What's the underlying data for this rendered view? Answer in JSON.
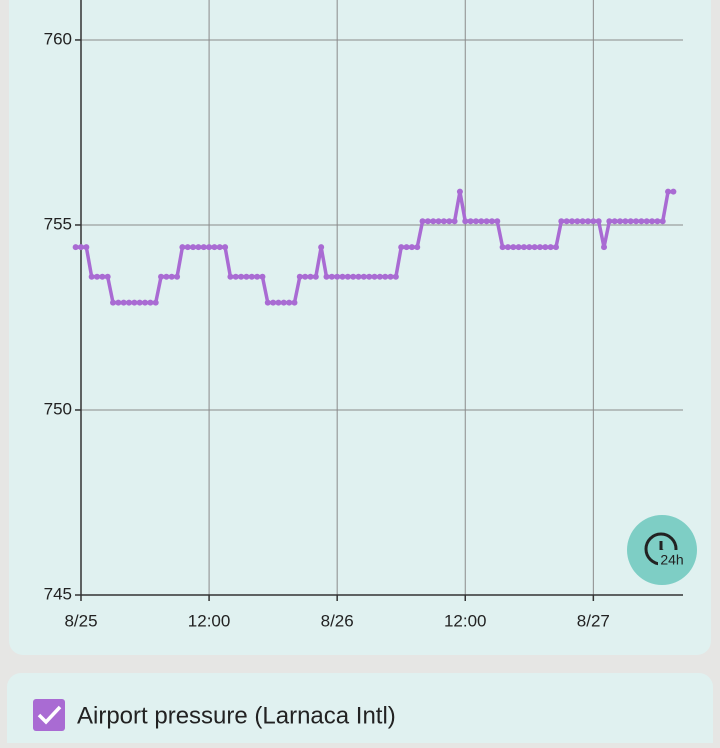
{
  "chart_data": {
    "type": "line",
    "x": [
      -0.5,
      0,
      0.5,
      1,
      1.5,
      2,
      2.5,
      3,
      3.5,
      4,
      4.5,
      5,
      5.5,
      6,
      6.5,
      7,
      7.5,
      8,
      8.5,
      9,
      9.5,
      10,
      10.5,
      11,
      11.5,
      12,
      12.5,
      13,
      13.5,
      14,
      14.5,
      15,
      15.5,
      16,
      16.5,
      17,
      17.5,
      18,
      18.5,
      19,
      19.5,
      20,
      20.5,
      21,
      21.5,
      22,
      22.5,
      23,
      23.5,
      24,
      24.5,
      25,
      25.5,
      26,
      26.5,
      27,
      27.5,
      28,
      28.5,
      29,
      29.5,
      30,
      30.5,
      31,
      31.5,
      32,
      32.5,
      33,
      33.5,
      34,
      34.5,
      35,
      35.5,
      36,
      36.5,
      37,
      37.5,
      38,
      38.5,
      39,
      39.5,
      40,
      40.5,
      41,
      41.5,
      42,
      42.5,
      43,
      43.5,
      44,
      44.5,
      45,
      45.5,
      46,
      46.5,
      47,
      47.5,
      48,
      48.5,
      49,
      49.5,
      50,
      50.5,
      51,
      51.5,
      52,
      52.5,
      53,
      53.5,
      54,
      54.5,
      55,
      55.5
    ],
    "series": [
      {
        "name": "Airport pressure (Larnaca Intl)",
        "color": "#a96bd3",
        "values": [
          754.4,
          754.4,
          754.4,
          753.6,
          753.6,
          753.6,
          753.6,
          752.9,
          752.9,
          752.9,
          752.9,
          752.9,
          752.9,
          752.9,
          752.9,
          752.9,
          753.6,
          753.6,
          753.6,
          753.6,
          754.4,
          754.4,
          754.4,
          754.4,
          754.4,
          754.4,
          754.4,
          754.4,
          754.4,
          753.6,
          753.6,
          753.6,
          753.6,
          753.6,
          753.6,
          753.6,
          752.9,
          752.9,
          752.9,
          752.9,
          752.9,
          752.9,
          753.6,
          753.6,
          753.6,
          753.6,
          754.4,
          753.6,
          753.6,
          753.6,
          753.6,
          753.6,
          753.6,
          753.6,
          753.6,
          753.6,
          753.6,
          753.6,
          753.6,
          753.6,
          753.6,
          754.4,
          754.4,
          754.4,
          754.4,
          755.1,
          755.1,
          755.1,
          755.1,
          755.1,
          755.1,
          755.1,
          755.9,
          755.1,
          755.1,
          755.1,
          755.1,
          755.1,
          755.1,
          755.1,
          754.4,
          754.4,
          754.4,
          754.4,
          754.4,
          754.4,
          754.4,
          754.4,
          754.4,
          754.4,
          754.4,
          755.1,
          755.1,
          755.1,
          755.1,
          755.1,
          755.1,
          755.1,
          755.1,
          754.4,
          755.1,
          755.1,
          755.1,
          755.1,
          755.1,
          755.1,
          755.1,
          755.1,
          755.1,
          755.1,
          755.1,
          755.9,
          755.9
        ]
      }
    ],
    "xlim": [
      0,
      56.4
    ],
    "xticks": [
      {
        "value": 0,
        "label": "8/25"
      },
      {
        "value": 12,
        "label": "12:00"
      },
      {
        "value": 24,
        "label": "8/26"
      },
      {
        "value": 36,
        "label": "12:00"
      },
      {
        "value": 48,
        "label": "8/27"
      }
    ],
    "ylim": [
      745,
      761.08
    ],
    "yticks": [
      745,
      750,
      755,
      760
    ],
    "grid": true
  },
  "range_button": "24h"
}
